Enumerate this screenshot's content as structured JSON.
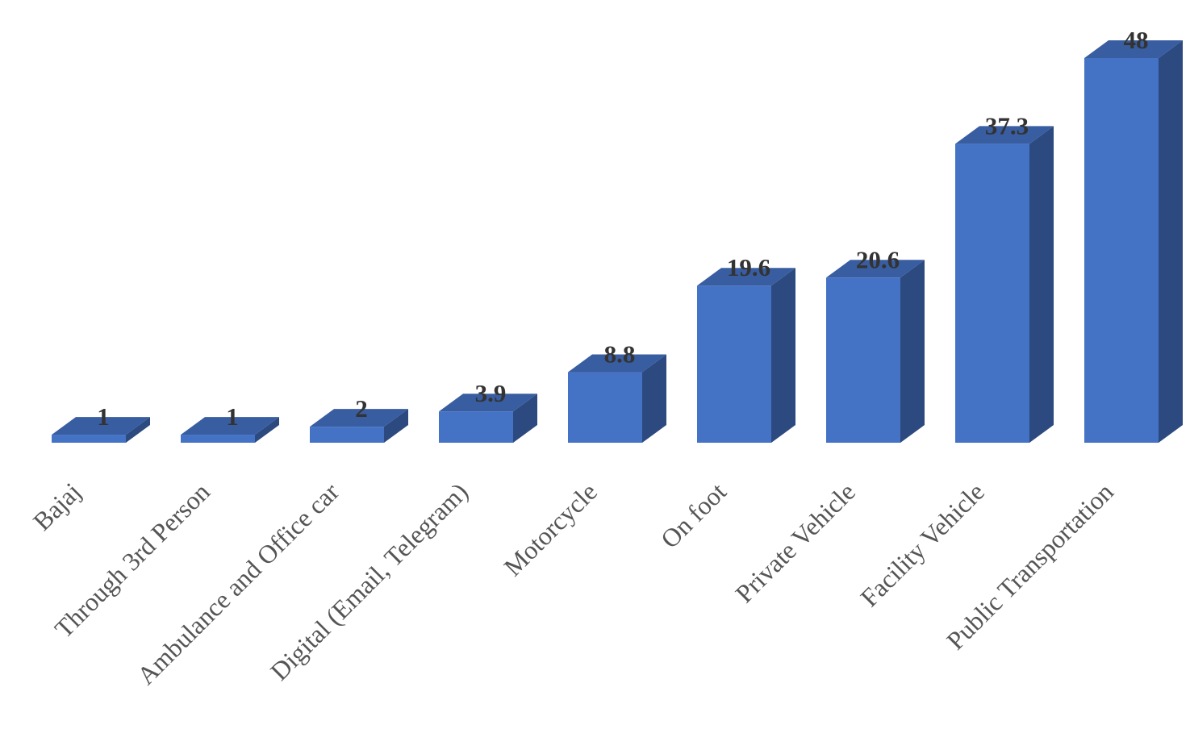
{
  "chart_data": {
    "type": "bar3d",
    "categories": [
      "Bajaj",
      "Through 3rd Person",
      "Ambulance and Office car",
      "Digital (Email, Telegram)",
      "Motorcycle",
      "On foot",
      "Private Vehicle",
      "Facility Vehicle",
      "Public Transportation"
    ],
    "values": [
      1,
      1,
      2,
      3.9,
      8.8,
      19.6,
      20.6,
      37.3,
      48
    ],
    "color": "#4472c4"
  }
}
